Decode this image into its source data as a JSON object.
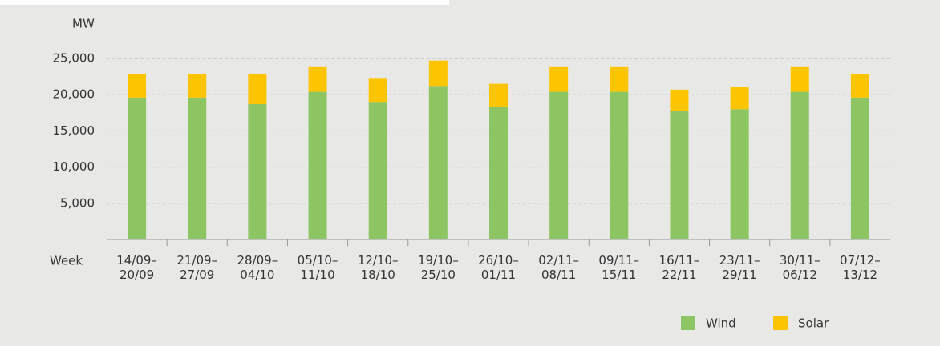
{
  "chart_data": {
    "type": "stacked_bar",
    "y_axis_label": "MW",
    "x_axis_label": "Week",
    "categories": [
      "14/09–\n20/09",
      "21/09–\n27/09",
      "28/09–\n04/10",
      "05/10–\n11/10",
      "12/10–\n18/10",
      "19/10–\n25/10",
      "26/10–\n01/11",
      "02/11–\n08/11",
      "09/11–\n15/11",
      "16/11–\n22/11",
      "23/11–\n29/11",
      "30/11–\n06/12",
      "07/12–\n13/12"
    ],
    "series": [
      {
        "name": "Wind",
        "color": "#8cc562",
        "values": [
          19600,
          19600,
          18700,
          20400,
          19000,
          21200,
          18300,
          20400,
          20400,
          17800,
          18000,
          20400,
          19600
        ]
      },
      {
        "name": "Solar",
        "color": "#fdc500",
        "values": [
          3200,
          3200,
          4200,
          3400,
          3200,
          3500,
          3200,
          3400,
          3400,
          2900,
          3100,
          3400,
          3200
        ]
      }
    ],
    "ylim": [
      0,
      25000
    ],
    "yticks": [
      {
        "value": 5000,
        "label": "5,000"
      },
      {
        "value": 10000,
        "label": "10,000"
      },
      {
        "value": 15000,
        "label": "15,000"
      },
      {
        "value": 20000,
        "label": "20,000"
      },
      {
        "value": 25000,
        "label": "25,000"
      }
    ],
    "grid": true,
    "legend": "bottom-right"
  }
}
